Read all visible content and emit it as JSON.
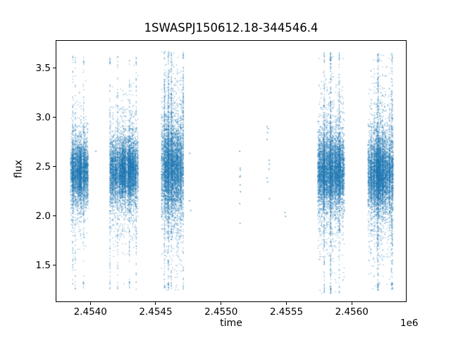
{
  "chart_data": {
    "type": "scatter",
    "title": "1SWASPJ150612.18-344546.4",
    "xlabel": "time",
    "ylabel": "flux",
    "x_offset_label": "1e6",
    "legend": null,
    "grid": false,
    "xlim": [
      2453740,
      2456414
    ],
    "ylim": [
      1.139,
      3.78
    ],
    "xticks": {
      "values": [
        2454000,
        2454500,
        2455000,
        2455500,
        2456000
      ],
      "labels": [
        "2.4540",
        "2.4545",
        "2.4550",
        "2.4555",
        "2.4560"
      ]
    },
    "yticks": {
      "values": [
        1.5,
        2.0,
        2.5,
        3.0,
        3.5
      ],
      "labels": [
        "1.5",
        "2.0",
        "2.5",
        "3.0",
        "3.5"
      ]
    },
    "colors": {
      "marker": "#1f77b4",
      "axis": "#000000",
      "text": "#000000",
      "background": "#ffffff"
    },
    "clusters": [
      {
        "t_start": 2453850,
        "t_end": 2453985,
        "n": 4200,
        "mu": 2.45,
        "core_sigma": 0.15,
        "core_frac": 0.74,
        "mid_sigma": 0.3,
        "mid_frac": 0.18,
        "tail_sigma": 0.62,
        "flux_min": 1.26,
        "flux_max": 3.63
      },
      {
        "t_start": 2454150,
        "t_end": 2454365,
        "n": 6600,
        "mu": 2.46,
        "core_sigma": 0.15,
        "core_frac": 0.72,
        "mid_sigma": 0.32,
        "mid_frac": 0.2,
        "tail_sigma": 0.62,
        "flux_min": 1.26,
        "flux_max": 3.62
      },
      {
        "t_start": 2454545,
        "t_end": 2454715,
        "n": 6200,
        "mu": 2.48,
        "core_sigma": 0.21,
        "core_frac": 0.6,
        "mid_sigma": 0.46,
        "mid_frac": 0.26,
        "upper_frac": 0.05,
        "upper_mu": 3.05,
        "upper_sigma": 0.27,
        "tail_sigma": 0.75,
        "flux_min": 1.25,
        "flux_max": 3.68
      },
      {
        "t_start": 2455740,
        "t_end": 2455945,
        "n": 7200,
        "mu": 2.45,
        "core_sigma": 0.17,
        "core_frac": 0.66,
        "mid_sigma": 0.4,
        "mid_frac": 0.24,
        "tail_sigma": 0.7,
        "flux_min": 1.22,
        "flux_max": 3.66
      },
      {
        "t_start": 2456125,
        "t_end": 2456320,
        "n": 7200,
        "mu": 2.44,
        "core_sigma": 0.17,
        "core_frac": 0.66,
        "mid_sigma": 0.4,
        "mid_frac": 0.24,
        "tail_sigma": 0.7,
        "flux_min": 1.25,
        "flux_max": 3.65
      }
    ],
    "sparse_points": [
      [
        2454042,
        2.66
      ],
      [
        2454758,
        2.16
      ],
      [
        2454760,
        2.64
      ],
      [
        2454768,
        2.06
      ],
      [
        2455143,
        2.66
      ],
      [
        2455143,
        2.4
      ],
      [
        2455143,
        2.13
      ],
      [
        2455145,
        1.93
      ],
      [
        2455146,
        2.49
      ],
      [
        2455147,
        2.47
      ],
      [
        2455146,
        2.32
      ],
      [
        2455148,
        2.41
      ],
      [
        2455148,
        2.25
      ],
      [
        2455352,
        2.91
      ],
      [
        2455352,
        2.78
      ],
      [
        2455352,
        2.39
      ],
      [
        2455355,
        2.85
      ],
      [
        2455356,
        2.35
      ],
      [
        2455360,
        2.89
      ],
      [
        2455368,
        2.57
      ],
      [
        2455368,
        2.48
      ],
      [
        2455370,
        2.53
      ],
      [
        2455370,
        2.18
      ],
      [
        2455489,
        2.04
      ],
      [
        2455494,
        2.0
      ]
    ]
  }
}
